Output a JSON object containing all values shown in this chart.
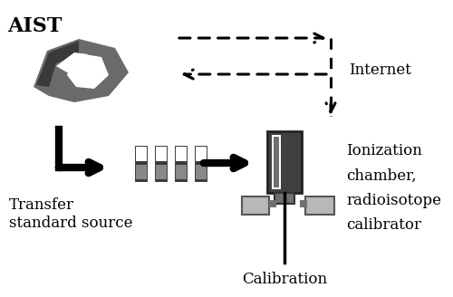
{
  "bg_color": "#ffffff",
  "aist_text": "AIST",
  "internet_text": "Internet",
  "transfer_text": "Transfer\nstandard source",
  "calibration_text": "Calibration",
  "ionization_text": "Ionization\nchamber,\nradioisotope\ncalibrator",
  "logo_gray": "#6a6a6a",
  "logo_dark": "#3a3a3a",
  "logo_light": "#999999",
  "arrow_lw": 2.5,
  "big_arrow_lw": 6,
  "dashed_lw": 2.2,
  "src_dark": "#3a3a3a",
  "src_mid": "#888888",
  "chamber_dark": "#404040",
  "chamber_mid": "#707070",
  "box_light": "#b8b8b8"
}
